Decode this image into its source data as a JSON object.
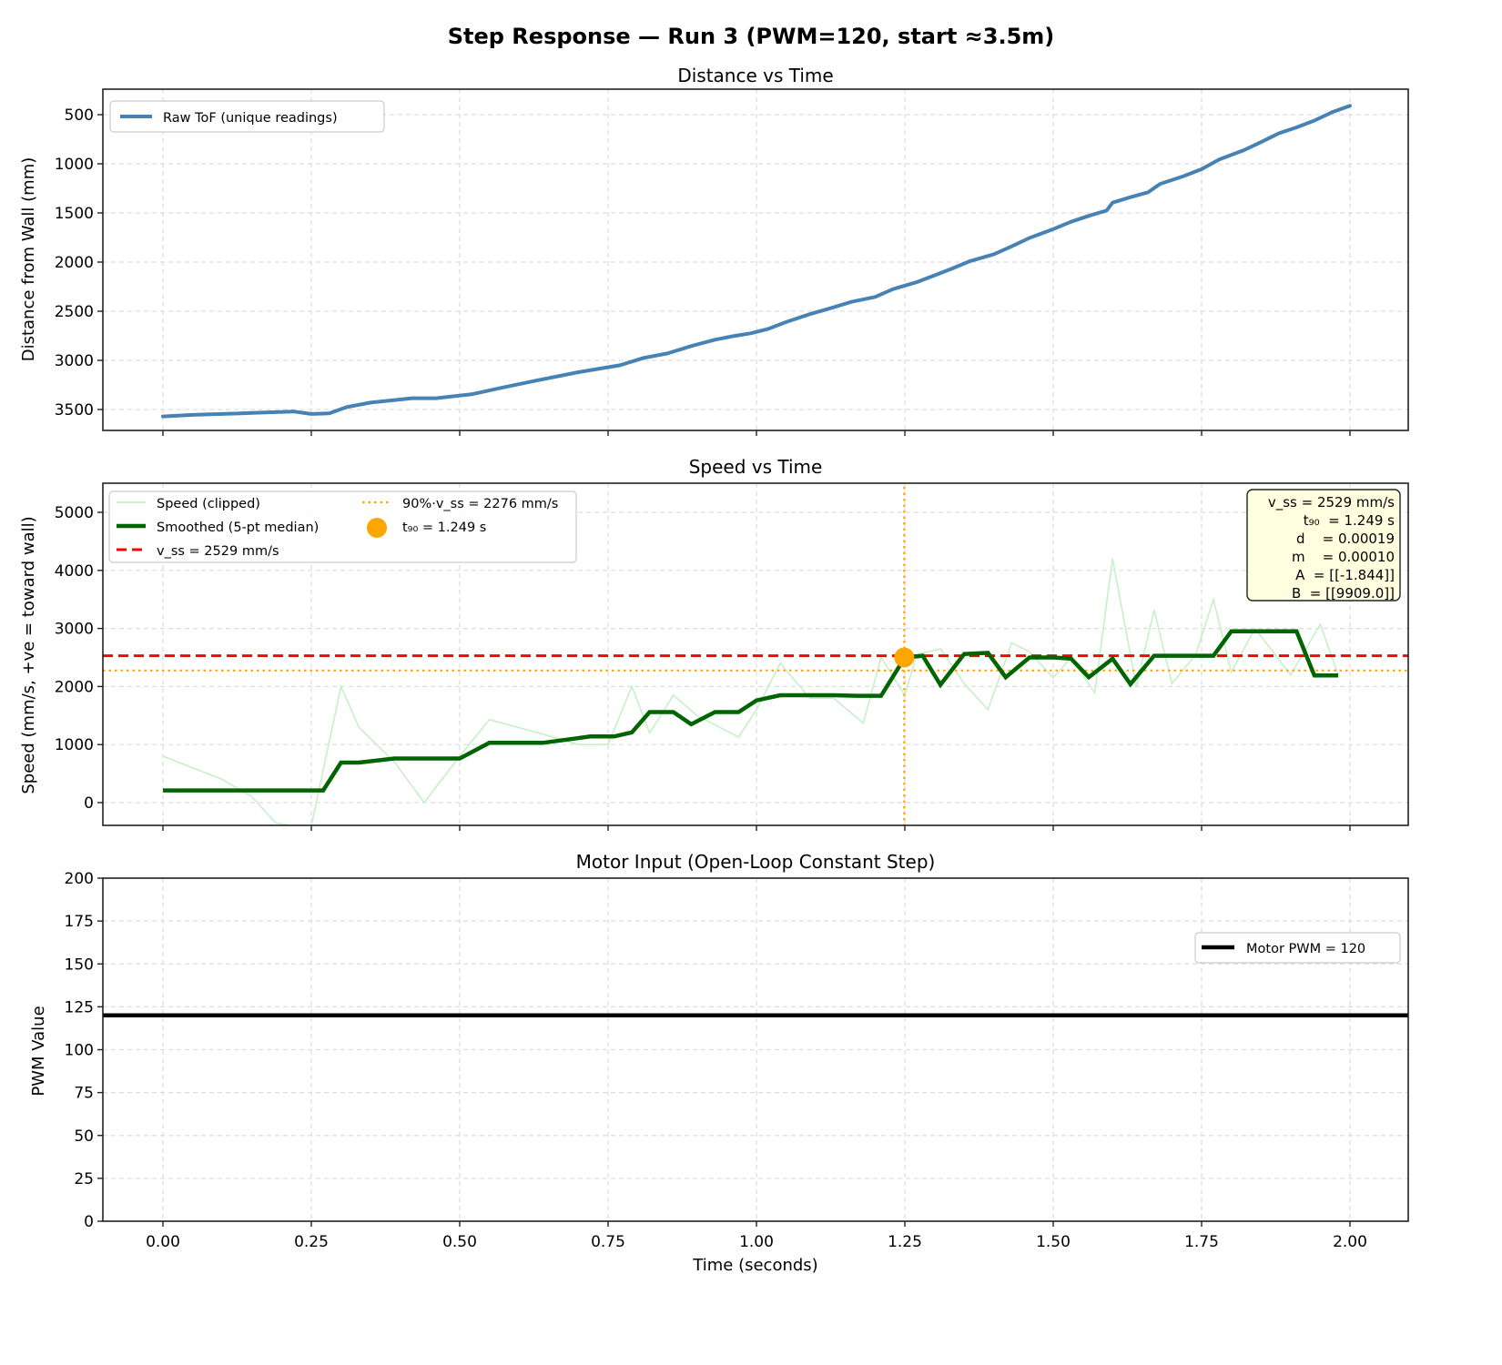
{
  "figure": {
    "suptitle": "Step Response — Run 3 (PWM=120, start ≈3.5m)",
    "xlabel": "Time (seconds)"
  },
  "colors": {
    "raw_tof": "#4682b4",
    "speed_raw": "#c7f0c7",
    "smoothed": "#006400",
    "v_ss": "#ff0000",
    "ninety_pct": "#ffa500",
    "t90_marker": "#ffa500",
    "pwm": "#000000",
    "grid": "#dddddd",
    "info_box_bg": "#ffffe0"
  },
  "panels": {
    "distance": {
      "title": "Distance vs Time",
      "ylabel": "Distance from Wall (mm)",
      "legend": [
        "Raw ToF (unique readings)"
      ],
      "yticks": [
        "500",
        "1000",
        "1500",
        "2000",
        "2500",
        "3000",
        "3500"
      ]
    },
    "speed": {
      "title": "Speed vs Time",
      "ylabel": "Speed (mm/s,  +ve = toward wall)",
      "legend": [
        "Speed (clipped)",
        "Smoothed (5-pt median)",
        "v_ss = 2529 mm/s",
        "90%·v_ss = 2276 mm/s",
        "t₉₀ = 1.249 s"
      ],
      "yticks": [
        "0",
        "1000",
        "2000",
        "3000",
        "4000",
        "5000"
      ],
      "info_box": [
        "v_ss = 2529 mm/s",
        "t₉₀  = 1.249 s",
        "d    = 0.00019",
        "m    = 0.00010",
        "A  = [[-1.844]]",
        "B  = [[9909.0]]"
      ]
    },
    "motor": {
      "title": "Motor Input (Open-Loop Constant Step)",
      "ylabel": "PWM Value",
      "legend": [
        "Motor PWM = 120"
      ],
      "yticks": [
        "0",
        "25",
        "50",
        "75",
        "100",
        "125",
        "150",
        "175",
        "200"
      ]
    },
    "xticks": [
      "0.00",
      "0.25",
      "0.50",
      "0.75",
      "1.00",
      "1.25",
      "1.50",
      "1.75",
      "2.00"
    ]
  },
  "chart_data": [
    {
      "type": "line",
      "title": "Distance vs Time",
      "xlabel": "Time (seconds)",
      "ylabel": "Distance from Wall (mm)",
      "xlim": [
        -0.1,
        2.1
      ],
      "ylim": [
        3730,
        260
      ],
      "y_inverted": true,
      "grid": true,
      "legend_position": "upper left",
      "series": [
        {
          "name": "Raw ToF (unique readings)",
          "x": [
            0.0,
            0.05,
            0.1,
            0.15,
            0.22,
            0.25,
            0.28,
            0.31,
            0.35,
            0.42,
            0.46,
            0.52,
            0.57,
            0.63,
            0.7,
            0.77,
            0.81,
            0.85,
            0.89,
            0.93,
            0.96,
            0.99,
            1.02,
            1.05,
            1.09,
            1.13,
            1.16,
            1.2,
            1.23,
            1.27,
            1.3,
            1.33,
            1.36,
            1.4,
            1.43,
            1.46,
            1.5,
            1.53,
            1.56,
            1.59,
            1.6,
            1.63,
            1.66,
            1.68,
            1.72,
            1.75,
            1.78,
            1.82,
            1.85,
            1.88,
            1.91,
            1.94,
            1.97,
            2.0
          ],
          "y": [
            3570,
            3555,
            3545,
            3535,
            3520,
            3545,
            3540,
            3475,
            3430,
            3385,
            3385,
            3345,
            3280,
            3205,
            3120,
            3050,
            2975,
            2930,
            2855,
            2790,
            2755,
            2725,
            2680,
            2610,
            2530,
            2460,
            2405,
            2355,
            2275,
            2205,
            2135,
            2065,
            1990,
            1920,
            1840,
            1755,
            1665,
            1590,
            1530,
            1475,
            1395,
            1340,
            1290,
            1205,
            1125,
            1055,
            955,
            865,
            780,
            690,
            630,
            560,
            475,
            410
          ]
        }
      ]
    },
    {
      "type": "line",
      "title": "Speed vs Time",
      "xlabel": "Time (seconds)",
      "ylabel": "Speed (mm/s,  +ve = toward wall)",
      "xlim": [
        -0.1,
        2.1
      ],
      "ylim": [
        -400,
        5500
      ],
      "grid": true,
      "legend_position": "upper left",
      "series": [
        {
          "name": "Speed (clipped)",
          "x": [
            0.0,
            0.05,
            0.1,
            0.15,
            0.19,
            0.22,
            0.25,
            0.3,
            0.33,
            0.39,
            0.44,
            0.5,
            0.55,
            0.64,
            0.7,
            0.75,
            0.79,
            0.82,
            0.86,
            0.9,
            0.97,
            1.0,
            1.04,
            1.09,
            1.13,
            1.18,
            1.21,
            1.25,
            1.27,
            1.31,
            1.35,
            1.39,
            1.43,
            1.46,
            1.5,
            1.53,
            1.57,
            1.6,
            1.64,
            1.67,
            1.7,
            1.74,
            1.77,
            1.8,
            1.84,
            1.9,
            1.95,
            1.98
          ],
          "y": [
            800,
            600,
            400,
            100,
            -350,
            -400,
            -400,
            2000,
            1300,
            700,
            0,
            800,
            1430,
            1180,
            1000,
            1000,
            2000,
            1200,
            1850,
            1500,
            1130,
            1600,
            2400,
            1800,
            1800,
            1370,
            2500,
            1850,
            2550,
            2650,
            2050,
            1600,
            2750,
            2600,
            2150,
            2500,
            1890,
            4200,
            2000,
            3320,
            2050,
            2550,
            3500,
            2250,
            3000,
            2200,
            3070,
            2200
          ]
        },
        {
          "name": "Smoothed (5-pt median)",
          "x": [
            0.0,
            0.27,
            0.3,
            0.33,
            0.39,
            0.5,
            0.55,
            0.64,
            0.72,
            0.76,
            0.79,
            0.82,
            0.86,
            0.89,
            0.93,
            0.97,
            1.0,
            1.04,
            1.13,
            1.17,
            1.21,
            1.25,
            1.28,
            1.31,
            1.35,
            1.39,
            1.42,
            1.46,
            1.5,
            1.53,
            1.56,
            1.6,
            1.63,
            1.67,
            1.73,
            1.77,
            1.8,
            1.84,
            1.91,
            1.94,
            1.98
          ],
          "y": [
            210,
            210,
            690,
            690,
            760,
            760,
            1030,
            1030,
            1140,
            1140,
            1210,
            1560,
            1560,
            1350,
            1560,
            1560,
            1760,
            1850,
            1850,
            1840,
            1840,
            2500,
            2529,
            2030,
            2560,
            2580,
            2160,
            2500,
            2500,
            2480,
            2160,
            2480,
            2040,
            2529,
            2529,
            2529,
            2950,
            2950,
            2950,
            2190,
            2190
          ]
        },
        {
          "name": "v_ss = 2529 mm/s",
          "type": "hline",
          "y": 2529,
          "style": "dashed"
        },
        {
          "name": "90%·v_ss = 2276 mm/s",
          "type": "hline",
          "y": 2276,
          "style": "dotted"
        },
        {
          "name": "t90 vertical",
          "type": "vline",
          "x": 1.249,
          "style": "dotted"
        },
        {
          "name": "t₉₀ = 1.249 s",
          "type": "scatter",
          "x": [
            1.249
          ],
          "y": [
            2500
          ]
        }
      ],
      "annotations": [
        "v_ss = 2529 mm/s",
        "t₉₀ = 1.249 s",
        "d = 0.00019",
        "m = 0.00010",
        "A = [[-1.844]]",
        "B = [[9909.0]]"
      ]
    },
    {
      "type": "line",
      "title": "Motor Input (Open-Loop Constant Step)",
      "xlabel": "Time (seconds)",
      "ylabel": "PWM Value",
      "xlim": [
        -0.1,
        2.1
      ],
      "ylim": [
        0,
        200
      ],
      "grid": true,
      "legend_position": "upper right",
      "series": [
        {
          "name": "Motor PWM = 120",
          "x": [
            -0.1,
            2.1
          ],
          "y": [
            120,
            120
          ]
        }
      ]
    }
  ]
}
